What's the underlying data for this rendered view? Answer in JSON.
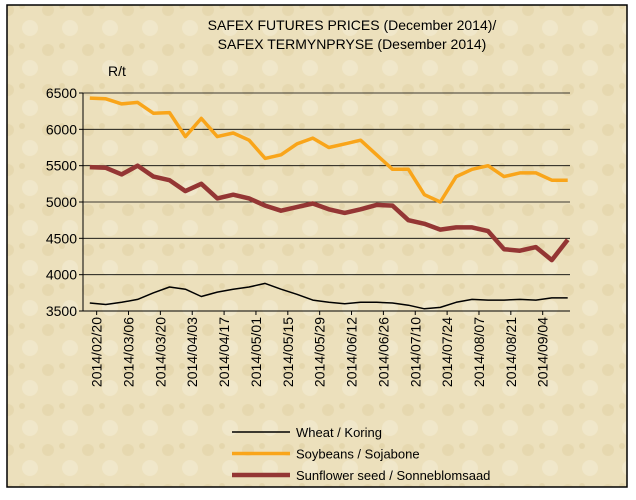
{
  "chart_data": {
    "type": "line",
    "title": "SAFEX FUTURES PRICES (December 2014)/",
    "subtitle": "SAFEX TERMYNPRYSE (Desember 2014)",
    "y_label": "R/t",
    "x": [
      "2014/02/17",
      "2014/02/24",
      "2014/03/03",
      "2014/03/10",
      "2014/03/17",
      "2014/03/24",
      "2014/03/31",
      "2014/04/07",
      "2014/04/14",
      "2014/04/21",
      "2014/04/28",
      "2014/05/05",
      "2014/05/12",
      "2014/05/19",
      "2014/05/26",
      "2014/06/02",
      "2014/06/09",
      "2014/06/16",
      "2014/06/23",
      "2014/06/30",
      "2014/07/07",
      "2014/07/14",
      "2014/07/21",
      "2014/07/28",
      "2014/08/04",
      "2014/08/11",
      "2014/08/18",
      "2014/08/25",
      "2014/09/01",
      "2014/09/08",
      "2014/09/15"
    ],
    "series": [
      {
        "name": "Wheat / Koring",
        "color": "#000000",
        "values": [
          3610,
          3590,
          3620,
          3660,
          3750,
          3830,
          3800,
          3700,
          3760,
          3800,
          3830,
          3880,
          3800,
          3730,
          3650,
          3620,
          3600,
          3620,
          3620,
          3610,
          3580,
          3530,
          3550,
          3620,
          3660,
          3650,
          3650,
          3660,
          3650,
          3680,
          3680
        ]
      },
      {
        "name": "Soybeans / Sojabone",
        "color": "#f9a51a",
        "values": [
          6430,
          6420,
          6350,
          6370,
          6220,
          6230,
          5900,
          6150,
          5900,
          5950,
          5850,
          5600,
          5650,
          5800,
          5880,
          5750,
          5800,
          5850,
          5650,
          5450,
          5450,
          5100,
          5000,
          5350,
          5450,
          5500,
          5350,
          5400,
          5400,
          5300,
          5300
        ]
      },
      {
        "name": "Sunflower seed / Sonneblomsaad",
        "color": "#943634",
        "values": [
          5480,
          5470,
          5380,
          5500,
          5350,
          5300,
          5150,
          5250,
          5050,
          5100,
          5050,
          4950,
          4880,
          4930,
          4980,
          4900,
          4850,
          4900,
          4960,
          4950,
          4750,
          4700,
          4620,
          4650,
          4650,
          4600,
          4350,
          4330,
          4380,
          4200,
          4480
        ]
      }
    ],
    "xlim": [
      "2014/02/14",
      "2014/09/16"
    ],
    "xticks": [
      "2014/02/20",
      "2014/03/06",
      "2014/03/20",
      "2014/04/03",
      "2014/04/17",
      "2014/05/01",
      "2014/05/15",
      "2014/05/29",
      "2014/06/12",
      "2014/06/26",
      "2014/07/10",
      "2014/07/24",
      "2014/08/07",
      "2014/08/21",
      "2014/09/04"
    ],
    "ylim": [
      3500,
      6500
    ],
    "yticks": [
      3500,
      4000,
      4500,
      5000,
      5500,
      6000,
      6500
    ],
    "grid": true,
    "legend": "bottom"
  }
}
